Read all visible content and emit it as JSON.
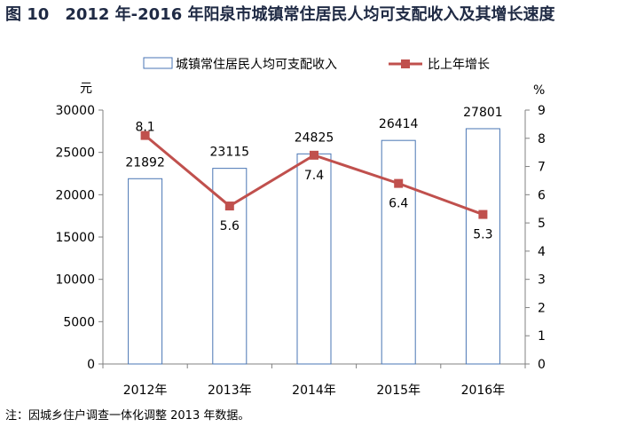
{
  "title": "图 10　2012 年-2016 年阳泉市城镇常住居民人均可支配收入及其增长速度",
  "note": "注：因城乡住户调查一体化调整 2013 年数据。",
  "chart_data": {
    "type": "bar+line",
    "categories": [
      "2012年",
      "2013年",
      "2014年",
      "2015年",
      "2016年"
    ],
    "series": [
      {
        "name": "城镇常住居民人均可支配收入",
        "type": "bar",
        "axis": "left",
        "values": [
          21892,
          23115,
          24825,
          26414,
          27801
        ],
        "color": "#ffffff",
        "stroke": "#4a76b4"
      },
      {
        "name": "比上年增长",
        "type": "line",
        "axis": "right",
        "values": [
          8.1,
          5.6,
          7.4,
          6.4,
          5.3
        ],
        "color": "#c0504d"
      }
    ],
    "y_left": {
      "label": "元",
      "min": 0,
      "max": 30000,
      "ticks": [
        0,
        5000,
        10000,
        15000,
        20000,
        25000,
        30000
      ]
    },
    "y_right": {
      "label": "%",
      "min": 0,
      "max": 9,
      "ticks": [
        0,
        1,
        2,
        3,
        4,
        5,
        6,
        7,
        8,
        9
      ]
    },
    "legend_position": "top",
    "grid": false
  }
}
